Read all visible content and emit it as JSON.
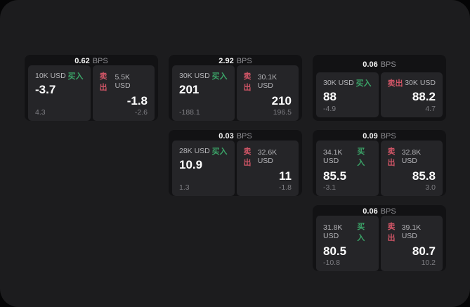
{
  "page": {
    "background": "#050506",
    "canvas_background": "#1c1c1e",
    "accent_buy_color": "#3ba468",
    "accent_sell_color": "#d05566"
  },
  "labels": {
    "bps": "BPS",
    "buy": "买入",
    "sell": "卖出"
  },
  "cards": [
    {
      "bps": "0.62",
      "buy": {
        "amount": "10K USD",
        "price": "-3.7",
        "delta": "4.3"
      },
      "sell": {
        "amount": "5.5K USD",
        "price": "-1.8",
        "delta": "-2.6"
      }
    },
    {
      "bps": "2.92",
      "buy": {
        "amount": "30K USD",
        "price": "201",
        "delta": "-188.1"
      },
      "sell": {
        "amount": "30.1K USD",
        "price": "210",
        "delta": "196.5"
      }
    },
    {
      "bps": "0.06",
      "buy": {
        "amount": "30K USD",
        "price": "88",
        "delta": "-4.9"
      },
      "sell": {
        "amount": "30K USD",
        "price": "88.2",
        "delta": "4.7"
      }
    },
    {
      "bps": "0.03",
      "buy": {
        "amount": "28K USD",
        "price": "10.9",
        "delta": "1.3"
      },
      "sell": {
        "amount": "32.6K USD",
        "price": "11",
        "delta": "-1.8"
      }
    },
    {
      "bps": "0.09",
      "buy": {
        "amount": "34.1K USD",
        "price": "85.5",
        "delta": "-3.1"
      },
      "sell": {
        "amount": "32.8K USD",
        "price": "85.8",
        "delta": "3.0"
      }
    },
    {
      "bps": "0.06",
      "buy": {
        "amount": "31.8K USD",
        "price": "80.5",
        "delta": "-10.8"
      },
      "sell": {
        "amount": "39.1K USD",
        "price": "80.7",
        "delta": "10.2"
      }
    }
  ]
}
